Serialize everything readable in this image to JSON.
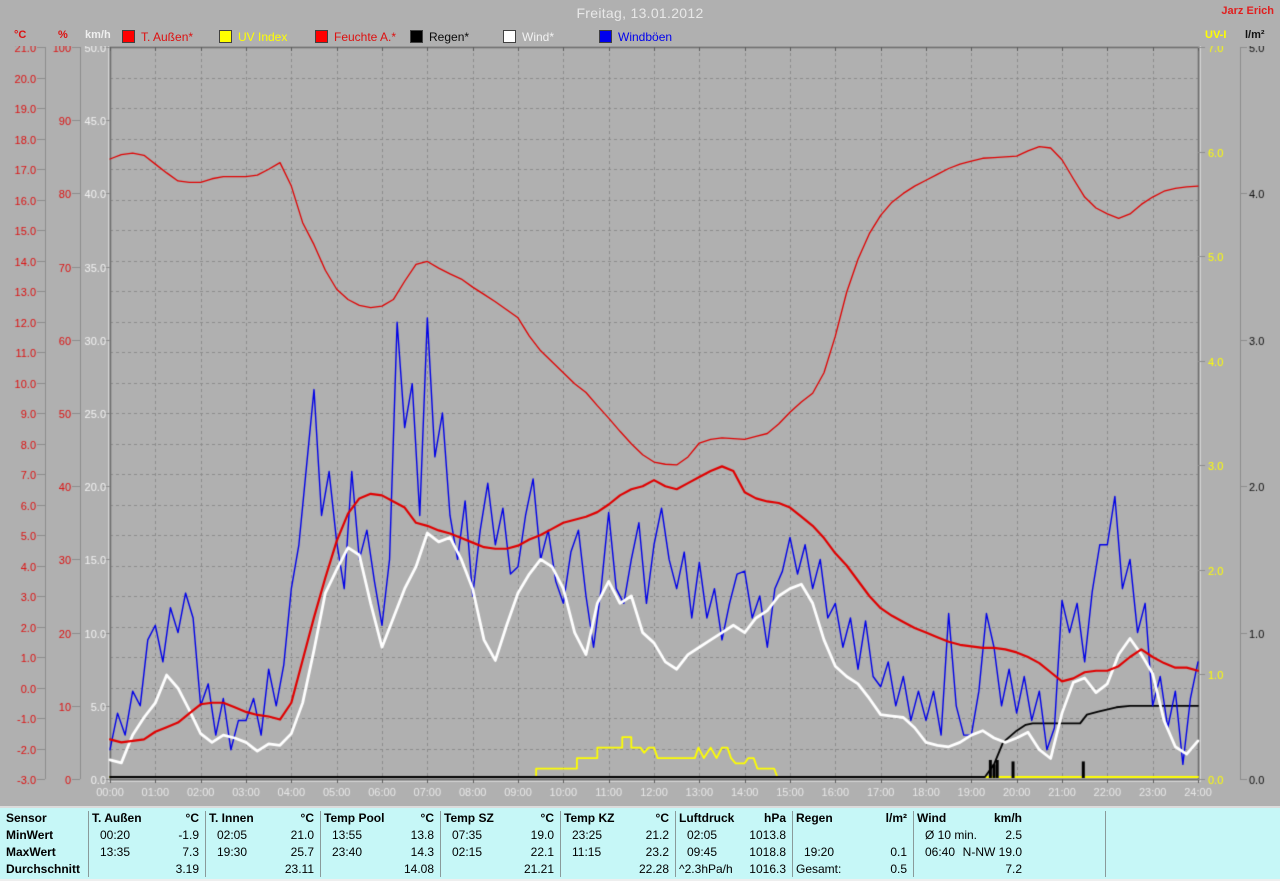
{
  "window": {
    "title": "Freitag, 13.01.2012",
    "author": "Jarz Erich"
  },
  "axis_headers": {
    "temp": "°C",
    "humidity": "%",
    "wind": "km/h",
    "uv": "UV-I",
    "rain": "l/m²"
  },
  "legend": {
    "items": [
      {
        "label": "T. Außen*",
        "color": "#ff0000"
      },
      {
        "label": "UV Index",
        "color": "#ffff00"
      },
      {
        "label": "Feuchte A.*",
        "color": "#ff0000"
      },
      {
        "label": "Regen*",
        "color": "#000000"
      },
      {
        "label": "Wind*",
        "color": "#ffffff"
      },
      {
        "label": "Windböen",
        "color": "#0000ee"
      }
    ]
  },
  "chart_data": {
    "type": "line",
    "title": "Freitag, 13.01.2012",
    "background": "#b0b0b0",
    "grid": {
      "color": "#8d8d8d",
      "dashed": true,
      "vertical_every_hours": 1,
      "horizontal_every_degC": 1
    },
    "x_labels": [
      "00:00",
      "01:00",
      "02:00",
      "03:00",
      "04:00",
      "05:00",
      "06:00",
      "07:00",
      "08:00",
      "09:00",
      "10:00",
      "11:00",
      "12:00",
      "13:00",
      "14:00",
      "15:00",
      "16:00",
      "17:00",
      "18:00",
      "19:00",
      "20:00",
      "21:00",
      "22:00",
      "23:00",
      "24:00"
    ],
    "axes": {
      "temp_c": {
        "min": -3,
        "max": 21,
        "tick": 1,
        "label_color": "#dd1111",
        "decimals": 1
      },
      "humidity": {
        "min": 0,
        "max": 100,
        "tick": 10,
        "label_color": "#dd1111",
        "decimals": 0
      },
      "wind_kmh": {
        "min": 0,
        "max": 50,
        "tick": 5,
        "label_color": "#f2f2f2",
        "decimals": 1
      },
      "uv": {
        "min": 0,
        "max": 7,
        "tick": 1,
        "label_color": "#ffff00",
        "decimals": 1
      },
      "rain_lm2": {
        "min": 0,
        "max": 5,
        "tick": 1,
        "label_color": "#111111",
        "decimals": 1
      }
    },
    "series": {
      "temp_aussen": {
        "name": "T. Außen",
        "axis": "temp_c",
        "color": "#e00000",
        "width": 2.2,
        "step_minutes": 15,
        "values": [
          -1.7,
          -1.8,
          -1.75,
          -1.7,
          -1.45,
          -1.3,
          -1.15,
          -0.85,
          -0.55,
          -0.5,
          -0.5,
          -0.65,
          -0.8,
          -0.9,
          -0.95,
          -1.05,
          -0.5,
          0.9,
          2.3,
          3.6,
          4.8,
          5.7,
          6.2,
          6.35,
          6.3,
          6.1,
          5.9,
          5.4,
          5.3,
          5.15,
          5.05,
          4.9,
          4.75,
          4.6,
          4.55,
          4.55,
          4.65,
          4.85,
          5.0,
          5.2,
          5.4,
          5.5,
          5.6,
          5.75,
          6.0,
          6.3,
          6.5,
          6.6,
          6.8,
          6.6,
          6.5,
          6.7,
          6.9,
          7.1,
          7.25,
          7.1,
          6.4,
          6.2,
          6.1,
          6.05,
          5.9,
          5.6,
          5.3,
          4.9,
          4.4,
          4.0,
          3.5,
          3.0,
          2.6,
          2.35,
          2.15,
          1.95,
          1.8,
          1.65,
          1.5,
          1.4,
          1.35,
          1.3,
          1.3,
          1.25,
          1.15,
          1.0,
          0.8,
          0.5,
          0.2,
          0.3,
          0.5,
          0.55,
          0.55,
          0.7,
          1.0,
          1.25,
          1.0,
          0.8,
          0.65,
          0.65,
          0.55
        ]
      },
      "feuchte_aussen": {
        "name": "Feuchte A.",
        "axis": "humidity",
        "color": "#e00000",
        "width": 1.3,
        "step_minutes": 15,
        "values": [
          84.7,
          85.3,
          85.5,
          85.2,
          84.0,
          82.8,
          81.7,
          81.5,
          81.5,
          82.0,
          82.3,
          82.3,
          82.3,
          82.5,
          83.3,
          84.2,
          81.0,
          76.0,
          73.0,
          69.5,
          66.9,
          65.5,
          64.7,
          64.4,
          64.6,
          65.5,
          68.0,
          70.3,
          70.7,
          69.8,
          69.0,
          68.3,
          67.2,
          66.2,
          65.2,
          64.1,
          63.0,
          60.5,
          58.5,
          57.0,
          55.5,
          54.0,
          52.8,
          51.0,
          49.3,
          47.5,
          45.8,
          44.3,
          43.3,
          43.0,
          42.9,
          44.0,
          45.9,
          46.4,
          46.6,
          46.5,
          46.4,
          46.8,
          47.2,
          48.5,
          50.1,
          51.5,
          52.7,
          55.5,
          60.5,
          66.5,
          71.0,
          74.5,
          77.0,
          78.8,
          80.0,
          81.0,
          81.8,
          82.6,
          83.4,
          84.0,
          84.4,
          84.8,
          84.9,
          85.0,
          85.1,
          85.8,
          86.4,
          86.2,
          84.6,
          82.0,
          79.5,
          78.0,
          77.2,
          76.6,
          77.2,
          78.5,
          79.5,
          80.3,
          80.7,
          80.9,
          81.0
        ]
      },
      "wind": {
        "name": "Wind",
        "axis": "wind_kmh",
        "color": "#ffffff",
        "width": 2.8,
        "step_minutes": 15,
        "values": [
          1.3,
          1.1,
          3.0,
          4.2,
          5.2,
          7.1,
          6.2,
          4.7,
          3.1,
          2.5,
          3.0,
          2.8,
          2.5,
          1.9,
          2.4,
          2.3,
          3.1,
          5.2,
          8.8,
          12.7,
          14.3,
          15.8,
          15.3,
          12.0,
          9.0,
          11.0,
          13.0,
          14.5,
          16.8,
          16.2,
          16.5,
          15.0,
          13.0,
          9.5,
          8.1,
          10.5,
          12.7,
          14.0,
          15.0,
          14.5,
          13.0,
          10.0,
          8.5,
          12.0,
          13.5,
          12.0,
          12.5,
          10.0,
          9.3,
          8.0,
          7.5,
          8.5,
          9.0,
          9.5,
          10.0,
          10.5,
          10.0,
          11.0,
          11.5,
          12.5,
          13.0,
          13.3,
          12.0,
          9.5,
          7.7,
          7.0,
          6.5,
          5.5,
          4.4,
          4.3,
          4.2,
          3.5,
          2.5,
          2.3,
          2.2,
          2.5,
          3.0,
          3.3,
          2.8,
          2.5,
          2.8,
          3.2,
          2.0,
          1.4,
          4.5,
          6.6,
          6.9,
          5.9,
          6.5,
          8.5,
          9.6,
          8.5,
          7.2,
          4.0,
          2.2,
          1.7,
          2.6
        ]
      },
      "windboeen": {
        "name": "Windböen",
        "axis": "wind_kmh",
        "color": "#0000e8",
        "width": 1.4,
        "step_minutes": 10,
        "values": [
          2.0,
          4.5,
          3.0,
          6.0,
          5.0,
          9.5,
          10.5,
          8.0,
          11.7,
          10.0,
          12.7,
          11.0,
          5.0,
          6.5,
          3.0,
          5.5,
          2.0,
          4.0,
          4.0,
          5.5,
          3.0,
          7.5,
          5.0,
          7.8,
          13.0,
          16.0,
          21.3,
          26.6,
          18.0,
          21.0,
          16.2,
          13.0,
          21.0,
          15.0,
          17.0,
          13.5,
          10.5,
          15.0,
          31.2,
          24.0,
          27.0,
          18.0,
          31.5,
          22.0,
          25.0,
          18.0,
          15.0,
          19.0,
          12.5,
          17.0,
          20.2,
          16.0,
          18.5,
          14.0,
          14.5,
          18.0,
          20.5,
          15.0,
          17.0,
          13.5,
          12.0,
          15.5,
          17.0,
          12.5,
          9.0,
          13.0,
          18.2,
          13.0,
          12.0,
          15.0,
          17.5,
          12.0,
          16.0,
          18.5,
          15.0,
          13.0,
          15.5,
          11.0,
          14.8,
          11.0,
          13.0,
          9.5,
          12.0,
          14.0,
          14.2,
          11.0,
          12.5,
          9.0,
          13.0,
          14.2,
          16.5,
          14.0,
          16.0,
          13.0,
          15.0,
          11.0,
          12.0,
          9.0,
          11.0,
          7.5,
          10.8,
          7.0,
          6.3,
          8.0,
          5.0,
          7.0,
          4.0,
          6.0,
          4.0,
          6.0,
          3.0,
          11.3,
          5.0,
          3.0,
          3.0,
          6.0,
          11.3,
          9.0,
          5.0,
          7.5,
          4.5,
          7.0,
          4.0,
          6.0,
          2.0,
          3.5,
          12.2,
          10.0,
          12.0,
          8.0,
          12.8,
          16.0,
          16.0,
          19.3,
          13.0,
          15.0,
          10.0,
          12.0,
          5.0,
          7.0,
          3.5,
          6.0,
          1.0,
          5.5,
          8.0
        ]
      },
      "uv_index": {
        "name": "UV Index",
        "axis": "uv",
        "color": "#ffff00",
        "width": 1.8,
        "points": [
          [
            0,
            0
          ],
          [
            9.4,
            0
          ],
          [
            9.4,
            0.1
          ],
          [
            10.3,
            0.1
          ],
          [
            10.3,
            0.2
          ],
          [
            10.75,
            0.2
          ],
          [
            10.75,
            0.3
          ],
          [
            11.3,
            0.3
          ],
          [
            11.3,
            0.4
          ],
          [
            11.5,
            0.4
          ],
          [
            11.5,
            0.3
          ],
          [
            11.7,
            0.3
          ],
          [
            11.78,
            0.25
          ],
          [
            11.88,
            0.3
          ],
          [
            12.0,
            0.3
          ],
          [
            12.08,
            0.2
          ],
          [
            12.9,
            0.2
          ],
          [
            12.98,
            0.3
          ],
          [
            13.1,
            0.2
          ],
          [
            13.25,
            0.3
          ],
          [
            13.38,
            0.2
          ],
          [
            13.5,
            0.3
          ],
          [
            13.62,
            0.3
          ],
          [
            13.7,
            0.2
          ],
          [
            13.8,
            0.15
          ],
          [
            14.0,
            0.15
          ],
          [
            14.08,
            0.2
          ],
          [
            14.2,
            0.2
          ],
          [
            14.28,
            0.1
          ],
          [
            14.65,
            0.1
          ],
          [
            14.72,
            0
          ],
          [
            24,
            0
          ]
        ]
      },
      "regen_summe": {
        "name": "Regen (Summe)",
        "axis": "rain_lm2",
        "color": "#000000",
        "width": 1.8,
        "points": [
          [
            0,
            0
          ],
          [
            19.3,
            0
          ],
          [
            19.5,
            0.1
          ],
          [
            19.7,
            0.25
          ],
          [
            20.0,
            0.33
          ],
          [
            20.2,
            0.37
          ],
          [
            20.35,
            0.38
          ],
          [
            21.4,
            0.38
          ],
          [
            21.55,
            0.44
          ],
          [
            21.8,
            0.46
          ],
          [
            22.2,
            0.49
          ],
          [
            22.5,
            0.5
          ],
          [
            24,
            0.5
          ]
        ]
      },
      "regen_bars": {
        "name": "Regen (Intensität)",
        "axis": "rain_lm2",
        "color": "#000000",
        "bars": [
          [
            19.42,
            0.13
          ],
          [
            19.5,
            0.1
          ],
          [
            19.57,
            0.13
          ],
          [
            19.92,
            0.12
          ],
          [
            21.47,
            0.12
          ]
        ]
      }
    }
  },
  "table": {
    "row_labels": [
      "Sensor",
      "MinWert",
      "MaxWert",
      "Durchschnitt"
    ],
    "columns": [
      {
        "name": "T. Außen",
        "unit": "°C",
        "min_time": "00:20",
        "min_val": "-1.9",
        "max_time": "13:35",
        "max_val": "7.3",
        "avg_label": "",
        "avg_val": "3.19"
      },
      {
        "name": "T. Innen",
        "unit": "°C",
        "min_time": "02:05",
        "min_val": "21.0",
        "max_time": "19:30",
        "max_val": "25.7",
        "avg_label": "",
        "avg_val": "23.11"
      },
      {
        "name": "Temp Pool",
        "unit": "°C",
        "min_time": "13:55",
        "min_val": "13.8",
        "max_time": "23:40",
        "max_val": "14.3",
        "avg_label": "",
        "avg_val": "14.08"
      },
      {
        "name": "Temp SZ",
        "unit": "°C",
        "min_time": "07:35",
        "min_val": "19.0",
        "max_time": "02:15",
        "max_val": "22.1",
        "avg_label": "",
        "avg_val": "21.21"
      },
      {
        "name": "Temp KZ",
        "unit": "°C",
        "min_time": "23:25",
        "min_val": "21.2",
        "max_time": "11:15",
        "max_val": "23.2",
        "avg_label": "",
        "avg_val": "22.28"
      },
      {
        "name": "Luftdruck",
        "unit": "hPa",
        "min_time": "02:05",
        "min_val": "1013.8",
        "max_time": "09:45",
        "max_val": "1018.8",
        "avg_label": "^2.3hPa/h",
        "avg_val": "1016.3"
      },
      {
        "name": "Regen",
        "unit": "l/m²",
        "min_time": "",
        "min_val": "",
        "max_time": "19:20",
        "max_val": "0.1",
        "avg_label": "Gesamt:",
        "avg_val": "0.5"
      },
      {
        "name": "Wind",
        "unit": "km/h",
        "min_time": "Ø 10 min.",
        "min_val": "2.5",
        "max_time": "06:40",
        "max_val": "N-NW 19.0",
        "avg_label": "",
        "avg_val": "7.2"
      }
    ]
  }
}
